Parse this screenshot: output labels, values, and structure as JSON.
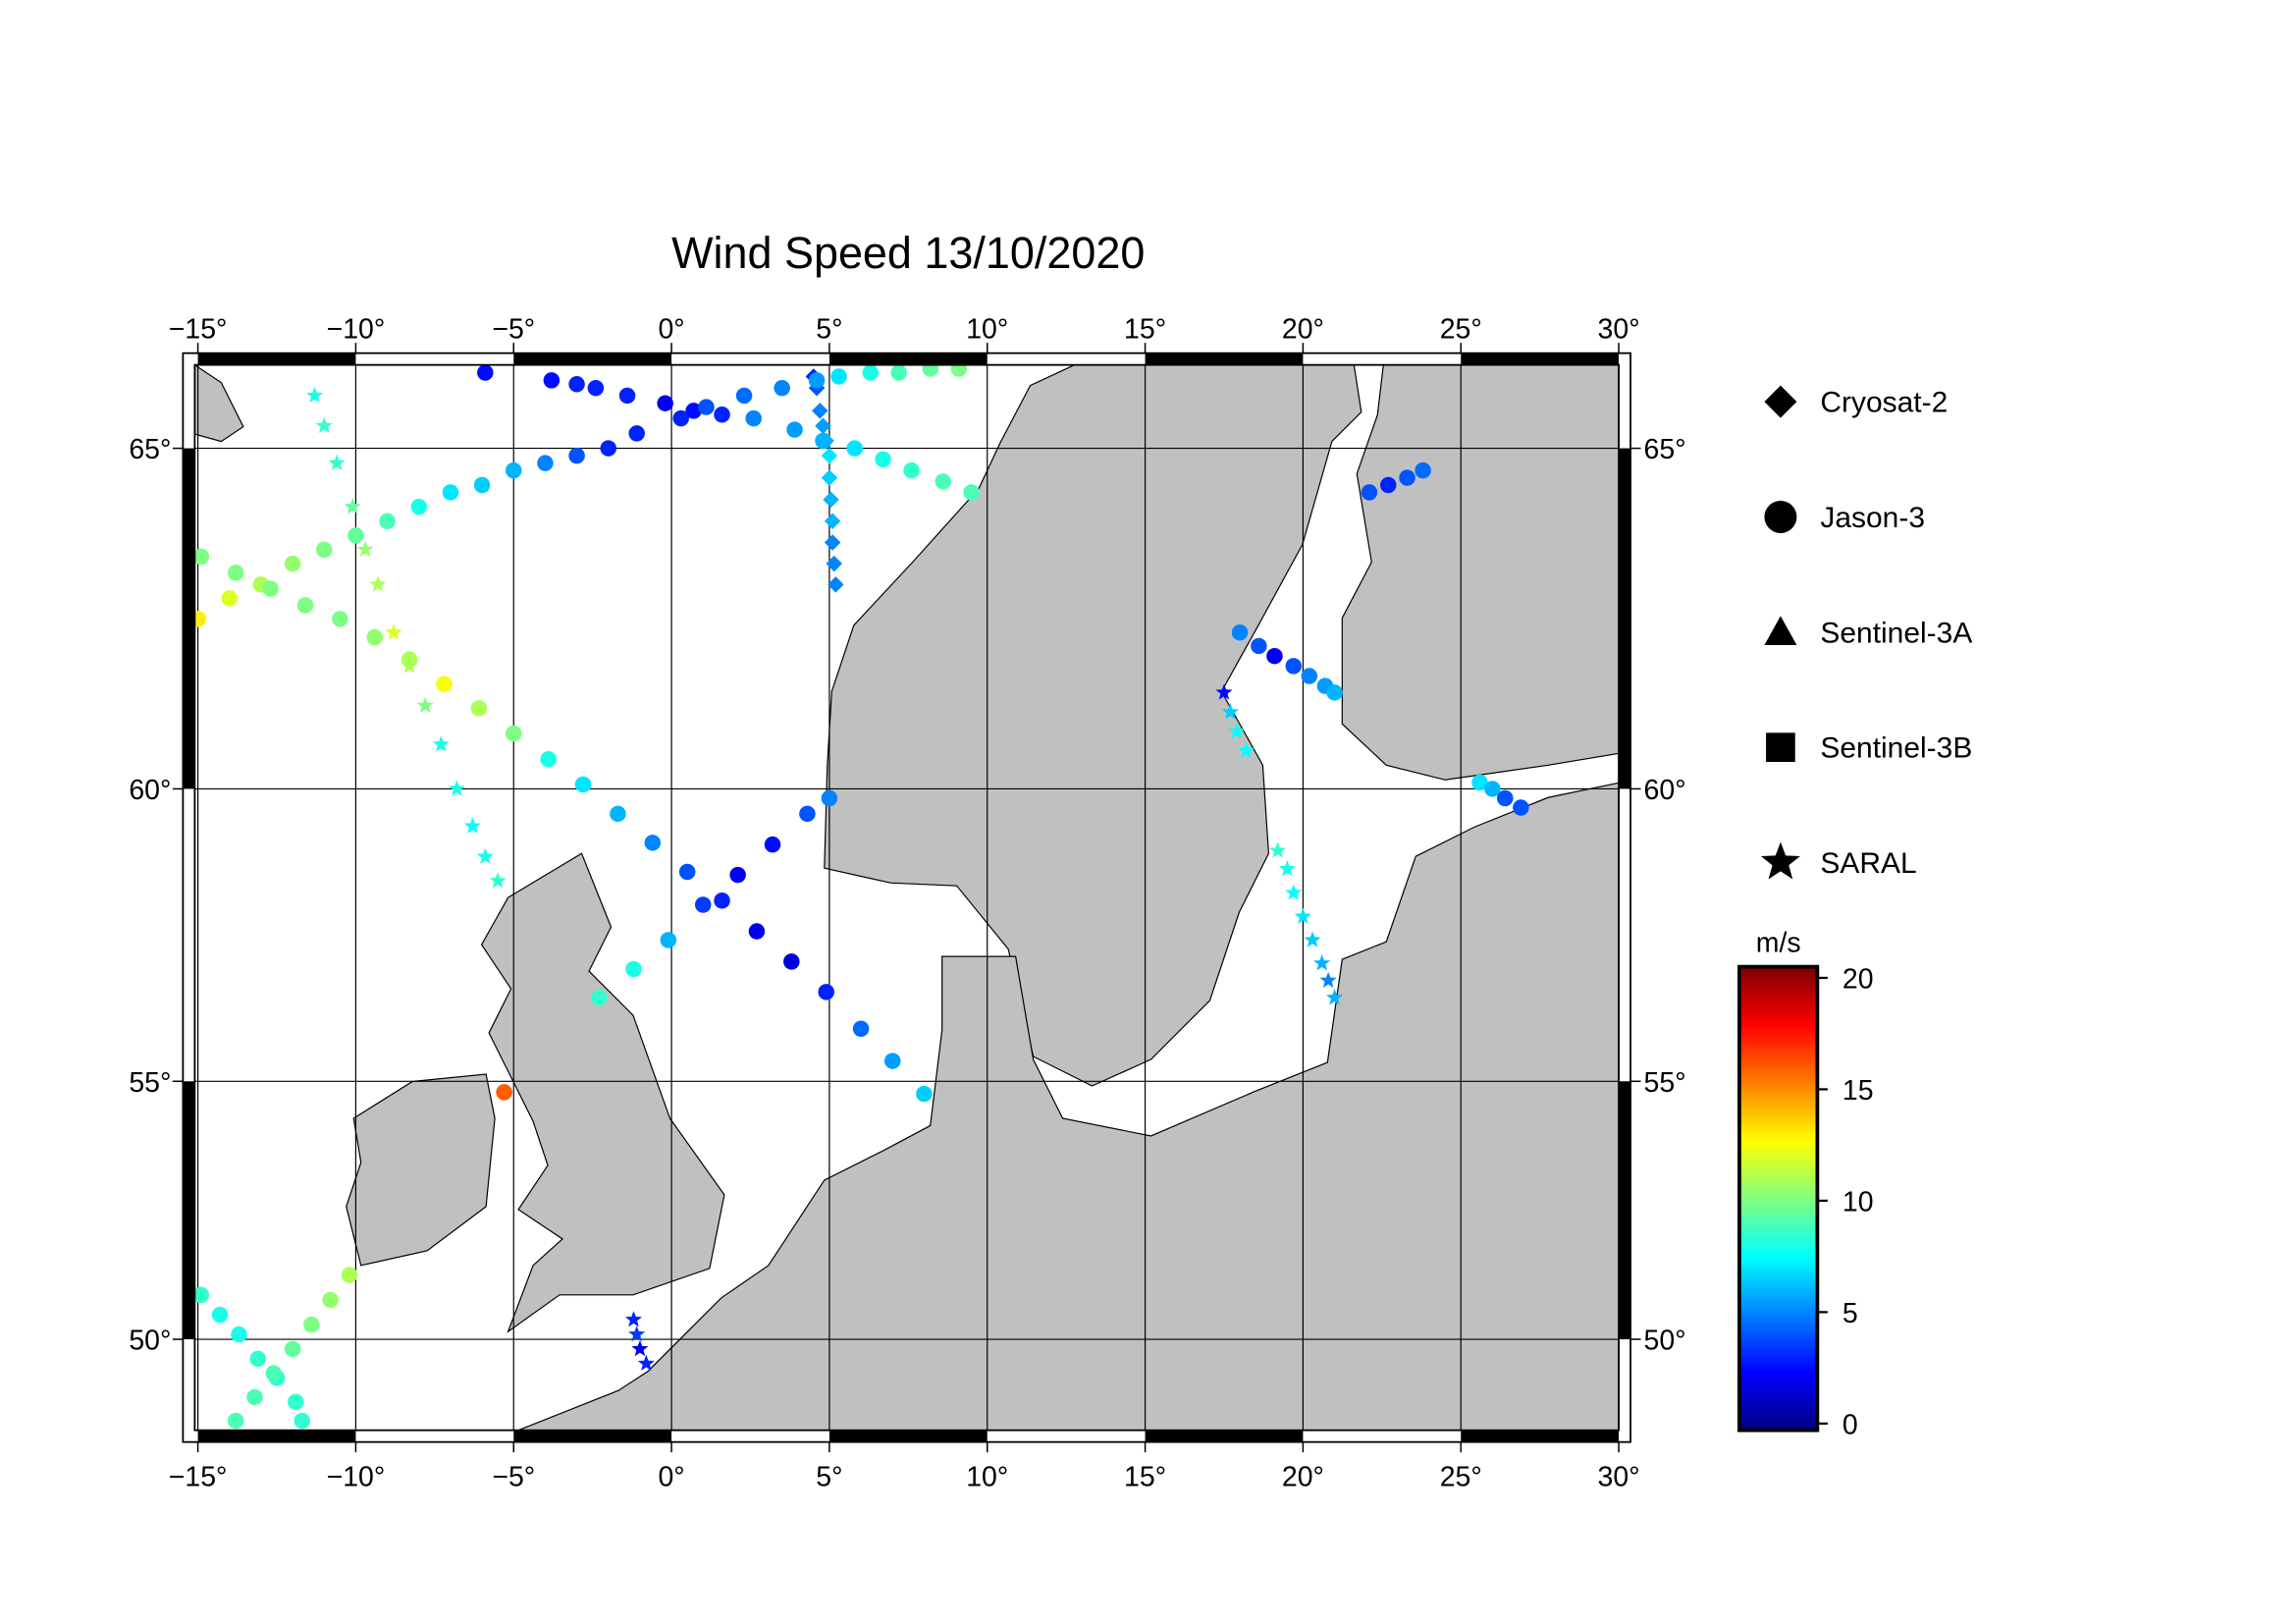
{
  "chart_data": {
    "type": "map",
    "title": "Wind Speed 13/10/2020",
    "xlim": [
      -15.1,
      30
    ],
    "ylim": [
      48.1,
      66.1
    ],
    "xticks": [
      {
        "value": -15,
        "label": "−15°"
      },
      {
        "value": -10,
        "label": "−10°"
      },
      {
        "value": -5,
        "label": "−5°"
      },
      {
        "value": 0,
        "label": "0°"
      },
      {
        "value": 5,
        "label": "5°"
      },
      {
        "value": 10,
        "label": "10°"
      },
      {
        "value": 15,
        "label": "15°"
      },
      {
        "value": 20,
        "label": "20°"
      },
      {
        "value": 25,
        "label": "25°"
      },
      {
        "value": 30,
        "label": "30°"
      }
    ],
    "yticks": [
      {
        "value": 50,
        "label": "50°"
      },
      {
        "value": 55,
        "label": "55°"
      },
      {
        "value": 60,
        "label": "60°"
      },
      {
        "value": 65,
        "label": "65°"
      }
    ],
    "grid": true,
    "colorbar": {
      "label": "m/s",
      "lim": [
        -0.3,
        20.5
      ],
      "ticks": [
        0,
        5,
        10,
        15,
        20
      ],
      "colormap": "jet"
    },
    "series": [
      {
        "name": "Cryosat-2",
        "marker": "diamond",
        "lon": [
          4.5,
          4.6,
          4.7,
          4.8,
          4.9,
          5.0,
          5.0,
          5.05,
          5.1,
          5.1,
          5.15,
          5.2
        ],
        "lat": [
          65.95,
          65.8,
          65.5,
          65.3,
          65.1,
          64.9,
          64.6,
          64.3,
          64.0,
          63.7,
          63.4,
          63.1
        ],
        "values": [
          3,
          4,
          5,
          5.5,
          6,
          7,
          6.5,
          6,
          6,
          5,
          5,
          5
        ]
      },
      {
        "name": "Jason-3",
        "marker": "circle",
        "lon": [
          -15,
          -14,
          -13,
          -12,
          -11,
          -10,
          -9,
          -8,
          -7,
          -6,
          -5,
          -4,
          -3,
          -2,
          -1.1,
          -5.9,
          -3.8,
          -3.0,
          -2.4,
          -1.4,
          -0.2,
          0.7,
          1.6,
          2.6,
          3.9,
          4.8,
          5.8,
          6.7,
          7.6,
          8.6,
          9.5,
          0.3,
          1.1,
          2.3,
          3.5,
          4.6,
          5.3,
          6.3,
          7.2,
          8.2,
          9.1,
          -14.9,
          -13.8,
          -12.7,
          -11.6,
          -10.5,
          -9.4,
          -8.3,
          -7.2,
          -6.1,
          -5.0,
          -3.9,
          -2.8,
          -1.7,
          -0.6,
          0.5,
          1.6,
          2.7,
          3.8,
          4.9,
          6.0,
          7.0,
          8.0,
          -2.3,
          -1.2,
          -0.1,
          1.0,
          2.1,
          3.2,
          4.3,
          5.0,
          18.0,
          18.6,
          19.1,
          19.7,
          20.2,
          20.7,
          21.0,
          22.1,
          22.7,
          23.3,
          23.8,
          25.6,
          26.0,
          26.4,
          26.9,
          -14.9,
          -14.3,
          -13.7,
          -13.1,
          -12.5,
          -11.9,
          -11.7,
          -13.8,
          -13.2,
          -12.6,
          -12.0,
          -11.4,
          -10.8,
          -10.2,
          -5.3
        ],
        "lat": [
          62.6,
          62.9,
          63.1,
          63.4,
          63.6,
          63.8,
          64.0,
          64.2,
          64.4,
          64.5,
          64.7,
          64.8,
          64.9,
          65.0,
          65.2,
          66.0,
          65.9,
          65.85,
          65.8,
          65.7,
          65.6,
          65.5,
          65.45,
          65.4,
          65.25,
          65.1,
          65.0,
          64.85,
          64.7,
          64.55,
          64.4,
          65.4,
          65.55,
          65.7,
          65.8,
          65.9,
          65.95,
          66.0,
          66.0,
          66.05,
          66.05,
          63.5,
          63.27,
          63.04,
          62.8,
          62.6,
          62.33,
          62.0,
          61.63,
          61.26,
          60.87,
          60.47,
          60.07,
          59.6,
          59.13,
          58.65,
          58.17,
          57.65,
          57.13,
          56.6,
          55.95,
          55.37,
          54.77,
          56.5,
          57.0,
          57.5,
          58.1,
          58.6,
          59.1,
          59.6,
          59.85,
          62.4,
          62.2,
          62.05,
          61.9,
          61.75,
          61.6,
          61.5,
          64.4,
          64.5,
          64.6,
          64.7,
          60.1,
          60.0,
          59.85,
          59.7,
          50.9,
          50.5,
          50.1,
          49.6,
          49.2,
          48.7,
          48.3,
          48.3,
          48.8,
          49.3,
          49.8,
          50.3,
          50.8,
          51.3,
          54.8
        ],
        "values": [
          13,
          12,
          11,
          10.5,
          10,
          9.5,
          9,
          8,
          7,
          6.5,
          6,
          5,
          4,
          3,
          3,
          2.5,
          2.5,
          3,
          3,
          3,
          2,
          2.5,
          3,
          5,
          5.5,
          6,
          7,
          8,
          8.5,
          9,
          9,
          3,
          4,
          4.5,
          5,
          5.5,
          7,
          8,
          9,
          9.5,
          10,
          10,
          10,
          10,
          10,
          10,
          10.5,
          11,
          12.5,
          11,
          10,
          8,
          7,
          6,
          5,
          4,
          3,
          2,
          1.5,
          3,
          4.5,
          5.5,
          6.5,
          8.5,
          8,
          6,
          3.5,
          2,
          2.5,
          4,
          5,
          5,
          4,
          2,
          4,
          5,
          5.5,
          6,
          4,
          3,
          4,
          4.5,
          7,
          6,
          4,
          4,
          8.5,
          8,
          8,
          8.5,
          8.5,
          8.5,
          8.5,
          9,
          9,
          9,
          9.5,
          10,
          10.5,
          11,
          16
        ]
      },
      {
        "name": "Sentinel-3A",
        "marker": "triangle",
        "lon": [],
        "lat": [],
        "values": []
      },
      {
        "name": "Sentinel-3B",
        "marker": "square",
        "lon": [],
        "lat": [],
        "values": []
      },
      {
        "name": "SARAL",
        "marker": "star",
        "lon": [
          -11.3,
          -11.0,
          -10.6,
          -10.1,
          -9.7,
          -9.3,
          -8.8,
          -8.3,
          -7.8,
          -7.3,
          -6.8,
          -6.3,
          -5.9,
          -5.5,
          -1.2,
          -1.1,
          -1.0,
          -0.8,
          17.5,
          17.7,
          17.9,
          18.2,
          19.2,
          19.5,
          19.7,
          20.0,
          20.3,
          20.6,
          20.8,
          21.0
        ],
        "lat": [
          65.7,
          65.3,
          64.8,
          64.2,
          63.6,
          63.1,
          62.4,
          61.9,
          61.3,
          60.7,
          60.0,
          59.4,
          58.9,
          58.5,
          50.4,
          50.1,
          49.8,
          49.5,
          61.5,
          61.2,
          60.9,
          60.6,
          59.0,
          58.7,
          58.3,
          57.9,
          57.5,
          57.1,
          56.8,
          56.5
        ],
        "values": [
          8,
          8.5,
          8.5,
          9.5,
          10.5,
          11,
          12,
          11,
          10,
          8,
          8,
          7.5,
          8,
          8.5,
          3,
          3.5,
          2,
          3,
          2.5,
          6.5,
          7.5,
          7.5,
          8.5,
          8,
          7.5,
          7,
          6.5,
          6,
          5,
          6
        ]
      }
    ]
  }
}
